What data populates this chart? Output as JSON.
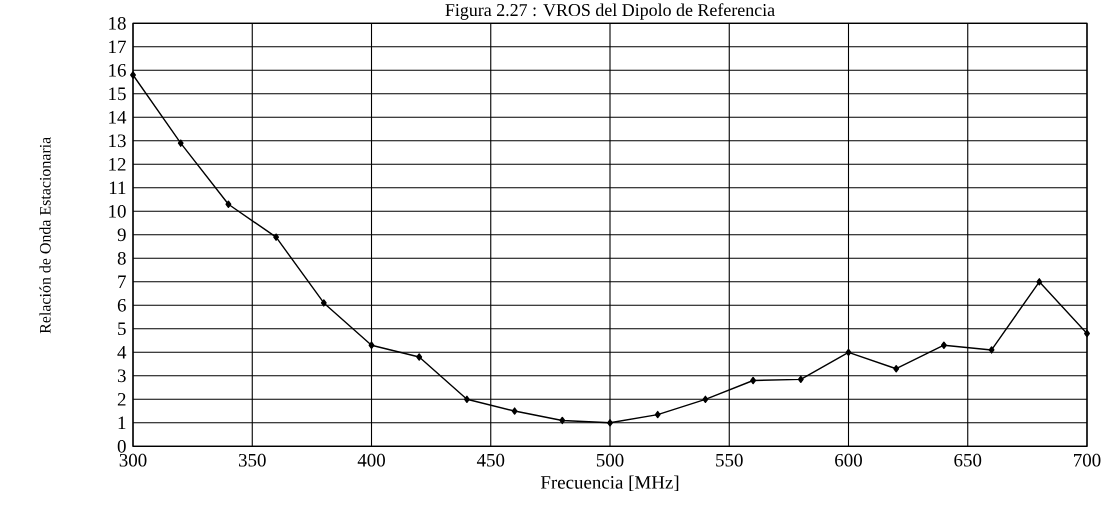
{
  "chart_data": {
    "type": "line",
    "title": "Figura 2.27 : VROS del Dipolo de Referencia",
    "xlabel": "Frecuencia [MHz]",
    "ylabel": "Relación de Onda Estacionaria",
    "x": [
      300,
      320,
      340,
      360,
      380,
      400,
      420,
      440,
      460,
      480,
      500,
      520,
      540,
      560,
      580,
      600,
      620,
      640,
      660,
      680,
      700
    ],
    "series": [
      {
        "color": "#000000",
        "values": [
          15.8,
          12.9,
          10.3,
          8.9,
          6.1,
          4.3,
          3.8,
          2.0,
          1.5,
          1.1,
          1.0,
          1.35,
          2.0,
          2.8,
          2.85,
          4.0,
          3.3,
          4.3,
          4.1,
          7.0,
          4.8
        ]
      }
    ],
    "xlim": [
      300,
      700
    ],
    "ylim": [
      0,
      18
    ],
    "xticks": [
      300,
      350,
      400,
      450,
      500,
      550,
      600,
      650,
      700
    ],
    "yticks": [
      0,
      1,
      2,
      3,
      4,
      5,
      6,
      7,
      8,
      9,
      10,
      11,
      12,
      13,
      14,
      15,
      16,
      17,
      18
    ],
    "grid": true,
    "marker": "diamond",
    "line_style": "solid"
  }
}
